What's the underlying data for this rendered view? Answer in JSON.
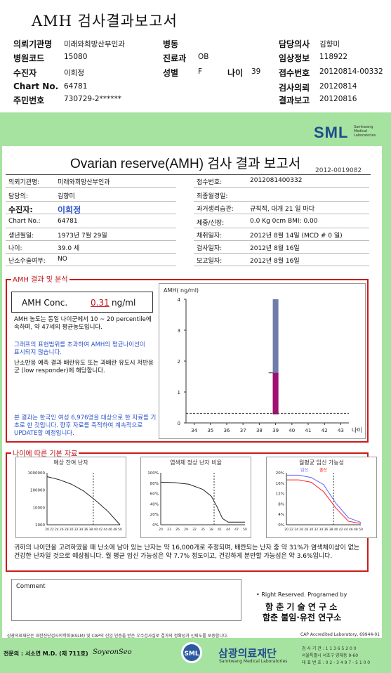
{
  "header": {
    "title": "AMH 검사결과보고서",
    "rows": [
      [
        {
          "l": "의뢰기관명",
          "v": "미래와희망산부인과"
        },
        {
          "l": "병동",
          "v": ""
        },
        {
          "l": "담당의사",
          "v": "김향미"
        }
      ],
      [
        {
          "l": "병원코드",
          "v": "15080"
        },
        {
          "l": "진료과",
          "v": "OB"
        },
        {
          "l": "임상정보",
          "v": "118922"
        }
      ],
      [
        {
          "l": "수진자",
          "v": "이희정"
        },
        {
          "l": "성별",
          "v": "F"
        },
        {
          "l": "접수번호",
          "v": "20120814-00332"
        }
      ],
      [
        {
          "l": "Chart No.",
          "v": "64781"
        },
        {
          "l": "",
          "v": ""
        },
        {
          "l": "검사의뢰",
          "v": "20120814"
        }
      ],
      [
        {
          "l": "주민번호",
          "v": "730729-2******"
        },
        {
          "l": "",
          "v": ""
        },
        {
          "l": "결과보고",
          "v": "20120816"
        }
      ]
    ],
    "age_label": "나이",
    "age_value": "39"
  },
  "logo": {
    "text": "SML",
    "sub": "Samkwang Medical Laboratories"
  },
  "report": {
    "title": "Ovarian reserve(AMH) 검사 결과 보고서",
    "number": "2012-0019082",
    "left": [
      {
        "l": "의뢰기관명:",
        "v": "미래와희망산부인과"
      },
      {
        "l": "담당의:",
        "v": "김향미"
      },
      {
        "l": "수진자:",
        "v": "이희정"
      },
      {
        "l": "Chart No.:",
        "v": "64781"
      },
      {
        "l": "생년월일:",
        "v": "1973년 7월 29일"
      },
      {
        "l": "나이:",
        "v": "39.0 세"
      },
      {
        "l": "난소수술여부:",
        "v": "NO"
      }
    ],
    "right": [
      {
        "l": "접수번호:",
        "v": "2012081400332"
      },
      {
        "l": "최종월경일:",
        "v": ""
      },
      {
        "l": "과거생리습관:",
        "v": "규칙적, 대개   21 일 마다"
      },
      {
        "l": "체중/신장:",
        "v": "0.0  Kg       0cm    BMI:     0.00"
      },
      {
        "l": "채취일자:",
        "v": "2012년 8월 14일   (MCD # 0 일)"
      },
      {
        "l": "검사일자:",
        "v": "2012년 8월 16일"
      },
      {
        "l": "보고일자:",
        "v": "2012년 8월 16일"
      }
    ]
  },
  "amh": {
    "section": "AMH 결과 및 분석",
    "label": "AMH Conc.",
    "value": "0.31",
    "unit": "ng/ml",
    "note1": "AMH 농도는 동일 나이군에서  10 ~ 20 percentile에 속하며, 약  47세의 평균농도입니다.",
    "note2": "그래프의 표현범위를 초과하여 AMH의 평균나이선이 표시되지 않습니다.",
    "note3": "난소반응 예측 결과 배란유도 또는 과배란 유도시 저반응군 (low responder)에 해당합니다.",
    "note4": "본 결과는 한국인 여성 6,976명을 대상으로 한 자료를 기초로 한 것입니다. 향후 자료를 축적하여 계속적으로 UPDATE할 예정입니다."
  },
  "chart_data": [
    {
      "type": "bar",
      "title": "",
      "ylabel": "AMH( ng/ml)",
      "xlabel": "나이",
      "x_ticks": [
        34,
        35,
        36,
        37,
        38,
        39,
        40,
        41,
        42,
        43
      ],
      "y_ticks": [
        0,
        1,
        2,
        3,
        4
      ],
      "ylim": [
        0,
        4
      ],
      "range_bar": {
        "x": 39,
        "low": 0.28,
        "high": 4.0
      },
      "percentile_box": {
        "x": 39,
        "low": 0.28,
        "high": 1.62
      },
      "patient_value": 0.31,
      "colors": {
        "range": "#6f7da8",
        "box": "#a01070"
      }
    },
    {
      "type": "line",
      "title": "예상 잔여 난자",
      "y_scale": "log",
      "y_ticks": [
        "1000000",
        "100000",
        "10000",
        "1000"
      ],
      "x_ticks": [
        20,
        22,
        24,
        26,
        28,
        30,
        32,
        34,
        36,
        38,
        40,
        42,
        44,
        46,
        48,
        50
      ],
      "ylim": [
        1000,
        1000000
      ],
      "series": [
        {
          "x": [
            20,
            25,
            30,
            35,
            40,
            45,
            50
          ],
          "values": [
            600000,
            400000,
            220000,
            90000,
            25000,
            6000,
            1000
          ]
        }
      ],
      "marker_age": 39
    },
    {
      "type": "line",
      "title": "염색체 정상 난자 비율",
      "y_ticks": [
        "100%",
        "80%",
        "60%",
        "40%",
        "20%",
        "0%"
      ],
      "x_ticks": [
        20,
        23,
        26,
        29,
        32,
        35,
        38,
        41,
        44,
        47,
        50
      ],
      "ylim": [
        0,
        100
      ],
      "series": [
        {
          "x": [
            20,
            25,
            30,
            35,
            38,
            40,
            42,
            44,
            50
          ],
          "values": [
            82,
            81,
            78,
            68,
            55,
            35,
            12,
            5,
            5
          ]
        }
      ],
      "marker_age": 39
    },
    {
      "type": "line",
      "title": "월평균 임신 가능성",
      "y_ticks": [
        "20%",
        "16%",
        "12%",
        "8%",
        "4%",
        "0%"
      ],
      "x_ticks": [
        20,
        22,
        24,
        26,
        28,
        30,
        32,
        34,
        36,
        38,
        40,
        42,
        44,
        46,
        48,
        50
      ],
      "ylim": [
        0,
        22
      ],
      "legend": [
        "임신",
        "출산"
      ],
      "series": [
        {
          "name": "임신",
          "x": [
            20,
            25,
            30,
            35,
            40,
            45,
            50
          ],
          "values": [
            21,
            21,
            20,
            17,
            9,
            3,
            1
          ],
          "color": "#6060ff"
        },
        {
          "name": "출산",
          "x": [
            20,
            25,
            30,
            35,
            40,
            45,
            50
          ],
          "values": [
            19,
            19,
            18,
            14,
            7,
            1.5,
            0.5
          ],
          "color": "#ff2020"
        }
      ],
      "marker_age": 39
    }
  ],
  "age_section": {
    "title": "나이에 따른 기본 자료",
    "summary": "귀하의 나이만을 고려하였을 때 난소에 남아 있는 난자는 약   16,000개로 추정되며, 배란되는 난자 중 약  31%가 염색체이상이 없는 건강한 난자일 것으로 예상됩니다. 월 평균 임신 가능성은 약  7.7% 정도이고, 건강하게 분만할 가능성은 약  3.6%입니다."
  },
  "comment_label": "Comment",
  "rights": "• Right Reserved. Programed by",
  "program1": "함 춘 기 술 연 구 소",
  "program2": "함춘 불임·유전 연구소",
  "footer": {
    "cert": "삼광의료재단은 대한진단검사의학회(KSLM) 및 CAP의 신임 인증을 받은 우수검사실로 결과의 정확성과 신뢰도를 보증합니다.",
    "cap": "CAP  Accredited  Laboratory,  69944-01",
    "doctor": "전문의 : 서소연 M.D. (제 711호)",
    "sign": "SoyeonSeo",
    "foundation": "삼광의료재단",
    "foundation_en": "Samkwang Medical Laboratories",
    "info1": "검 사 기 관 : 1 1 3 6 5 2 0 0",
    "info2": "서울특별시 서초구 양재동 9-60",
    "info3": "대 표 번 호 : 0 2 - 3 4 9 7 - 5 1 0 0"
  }
}
